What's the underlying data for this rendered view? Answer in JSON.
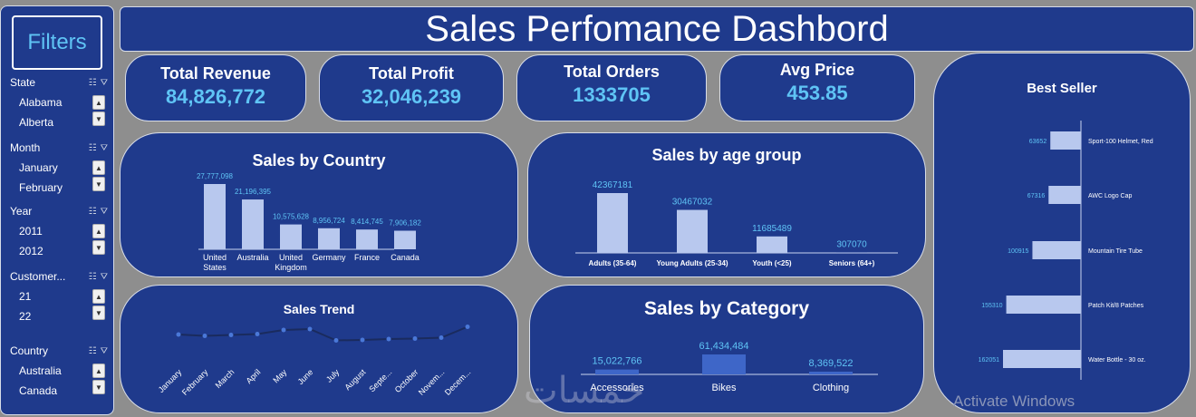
{
  "title": "Sales Perfomance Dashbord",
  "sidebar": {
    "title": "Filters",
    "slicers": [
      {
        "label": "State",
        "items": [
          "Alabama",
          "Alberta"
        ]
      },
      {
        "label": "Month",
        "items": [
          "January",
          "February"
        ]
      },
      {
        "label": "Year",
        "items": [
          "2011",
          "2012"
        ]
      },
      {
        "label": "Customer...",
        "items": [
          "21",
          "22"
        ]
      },
      {
        "label": "Country",
        "items": [
          "Australia",
          "Canada"
        ]
      }
    ]
  },
  "kpis": [
    {
      "label": "Total Revenue",
      "value": "84,826,772"
    },
    {
      "label": "Total Profit",
      "value": "32,046,239"
    },
    {
      "label": "Total Orders",
      "value": "1333705"
    },
    {
      "label": "Avg Price",
      "value": "453.85"
    }
  ],
  "colors": {
    "panel": "#1f3a8c",
    "accent": "#5fc4f5",
    "bar": "#b8c8ee"
  },
  "watermark": "Activate Windows",
  "chart_data": [
    {
      "type": "bar",
      "title": "Sales by Country",
      "categories": [
        "United States",
        "Australia",
        "United Kingdom",
        "Germany",
        "France",
        "Canada"
      ],
      "values": [
        27777098,
        21196395,
        10575628,
        8956724,
        8414745,
        7906182
      ],
      "labels": [
        "27,777,098",
        "21,196,395",
        "10,575,628",
        "8,956,724",
        "8,414,745",
        "7,906,182"
      ]
    },
    {
      "type": "bar",
      "title": "Sales by age group",
      "categories": [
        "Adults (35-64)",
        "Young Adults (25-34)",
        "Youth (<25)",
        "Seniors (64+)"
      ],
      "values": [
        42367181,
        30467032,
        11685489,
        307070
      ],
      "labels": [
        "42367181",
        "30467032",
        "11685489",
        "307070"
      ]
    },
    {
      "type": "line",
      "title": "Sales Trend",
      "categories": [
        "January",
        "February",
        "March",
        "April",
        "May",
        "June",
        "July",
        "August",
        "Septe...",
        "October",
        "Novem...",
        "Decem..."
      ],
      "values": [
        7.2,
        6.9,
        7.1,
        7.3,
        8.2,
        8.4,
        5.9,
        6.0,
        6.2,
        6.3,
        6.5,
        8.9
      ]
    },
    {
      "type": "bar",
      "title": "Sales by Category",
      "categories": [
        "Accessories",
        "Bikes",
        "Clothing"
      ],
      "values": [
        15022766,
        61434484,
        8369522
      ],
      "labels": [
        "15,022,766",
        "61,434,484",
        "8,369,522"
      ]
    },
    {
      "type": "bar",
      "orientation": "horizontal",
      "title": "Best Seller",
      "categories": [
        "Sport-100 Helmet, Red",
        "AWC Logo Cap",
        "Mountain Tire Tube",
        "Patch Kit/8 Patches",
        "Water Bottle - 30 oz."
      ],
      "values": [
        63652,
        67316,
        100915,
        155310,
        162051
      ],
      "labels": [
        "63652",
        "67316",
        "100915",
        "155310",
        "162051"
      ]
    }
  ]
}
